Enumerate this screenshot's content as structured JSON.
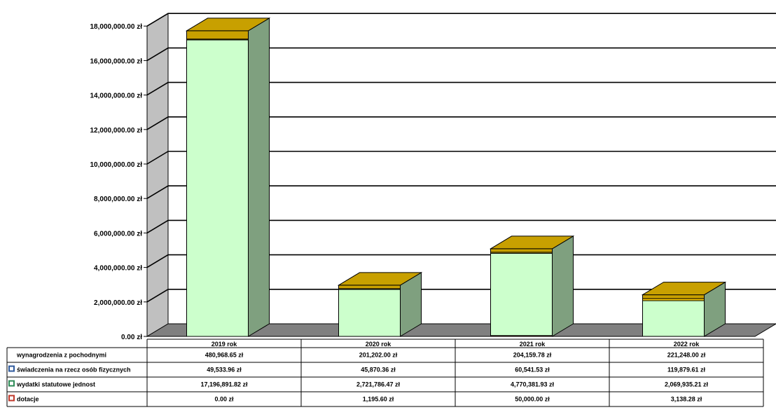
{
  "chart_data": {
    "type": "bar",
    "stacked": true,
    "three_d": true,
    "categories": [
      "2019 rok",
      "2020 rok",
      "2021 rok",
      "2022 rok"
    ],
    "series": [
      {
        "name": "wynagrodzenia z pochodnymi",
        "values": [
          480968.65,
          201202.0,
          204159.78,
          221248.0
        ],
        "labels": [
          "480,968.65 zł",
          "201,202.00 zł",
          "204,159.78 zł",
          "221,248.00 zł"
        ],
        "color": "#c8a000",
        "swatch": "#ffffff"
      },
      {
        "name": "świadczenia na rzecz osób fizycznych",
        "values": [
          49533.96,
          45870.36,
          60541.53,
          119879.61
        ],
        "labels": [
          "49,533.96 zł",
          "45,870.36 zł",
          "60,541.53 zł",
          "119,879.61 zł"
        ],
        "color": "#ffcc00",
        "swatch": "#2f5a9c"
      },
      {
        "name": "wydatki statutowe jednost",
        "values": [
          17196891.82,
          2721786.47,
          4770381.93,
          2069935.21
        ],
        "labels": [
          "17,196,891.82 zł",
          "2,721,786.47 zł",
          "4,770,381.93 zł",
          "2,069,935.21 zł"
        ],
        "color": "#ccffcc",
        "swatch": "#2e8b57"
      },
      {
        "name": "dotacje",
        "values": [
          0.0,
          1195.6,
          50000.0,
          3138.28
        ],
        "labels": [
          "0.00 zł",
          "1,195.60 zł",
          "50,000.00 zł",
          "3,138.28 zł"
        ],
        "color": "#cc3300",
        "swatch": "#c0392b"
      }
    ],
    "stack_order_bottom_to_top": [
      "dotacje",
      "wydatki statutowe jednost",
      "świadczenia na rzecz osób fizycznych",
      "wynagrodzenia z pochodnymi"
    ],
    "y_ticks": [
      0,
      2000000,
      4000000,
      6000000,
      8000000,
      10000000,
      12000000,
      14000000,
      16000000,
      18000000
    ],
    "y_tick_labels": [
      "0.00 zł",
      "2,000,000.00 zł",
      "4,000,000.00 zł",
      "6,000,000.00 zł",
      "8,000,000.00 zł",
      "10,000,000.00 zł",
      "12,000,000.00 zł",
      "14,000,000.00 zł",
      "16,000,000.00 zł",
      "18,000,000.00 zł"
    ],
    "ylim": [
      0,
      18000000
    ],
    "grid": true,
    "legend": "data-table-below",
    "colors": {
      "wall": "#c0c0c0",
      "floor": "#808080",
      "bar_side": "#7fa07f",
      "cap_top": "#c8a000"
    }
  }
}
